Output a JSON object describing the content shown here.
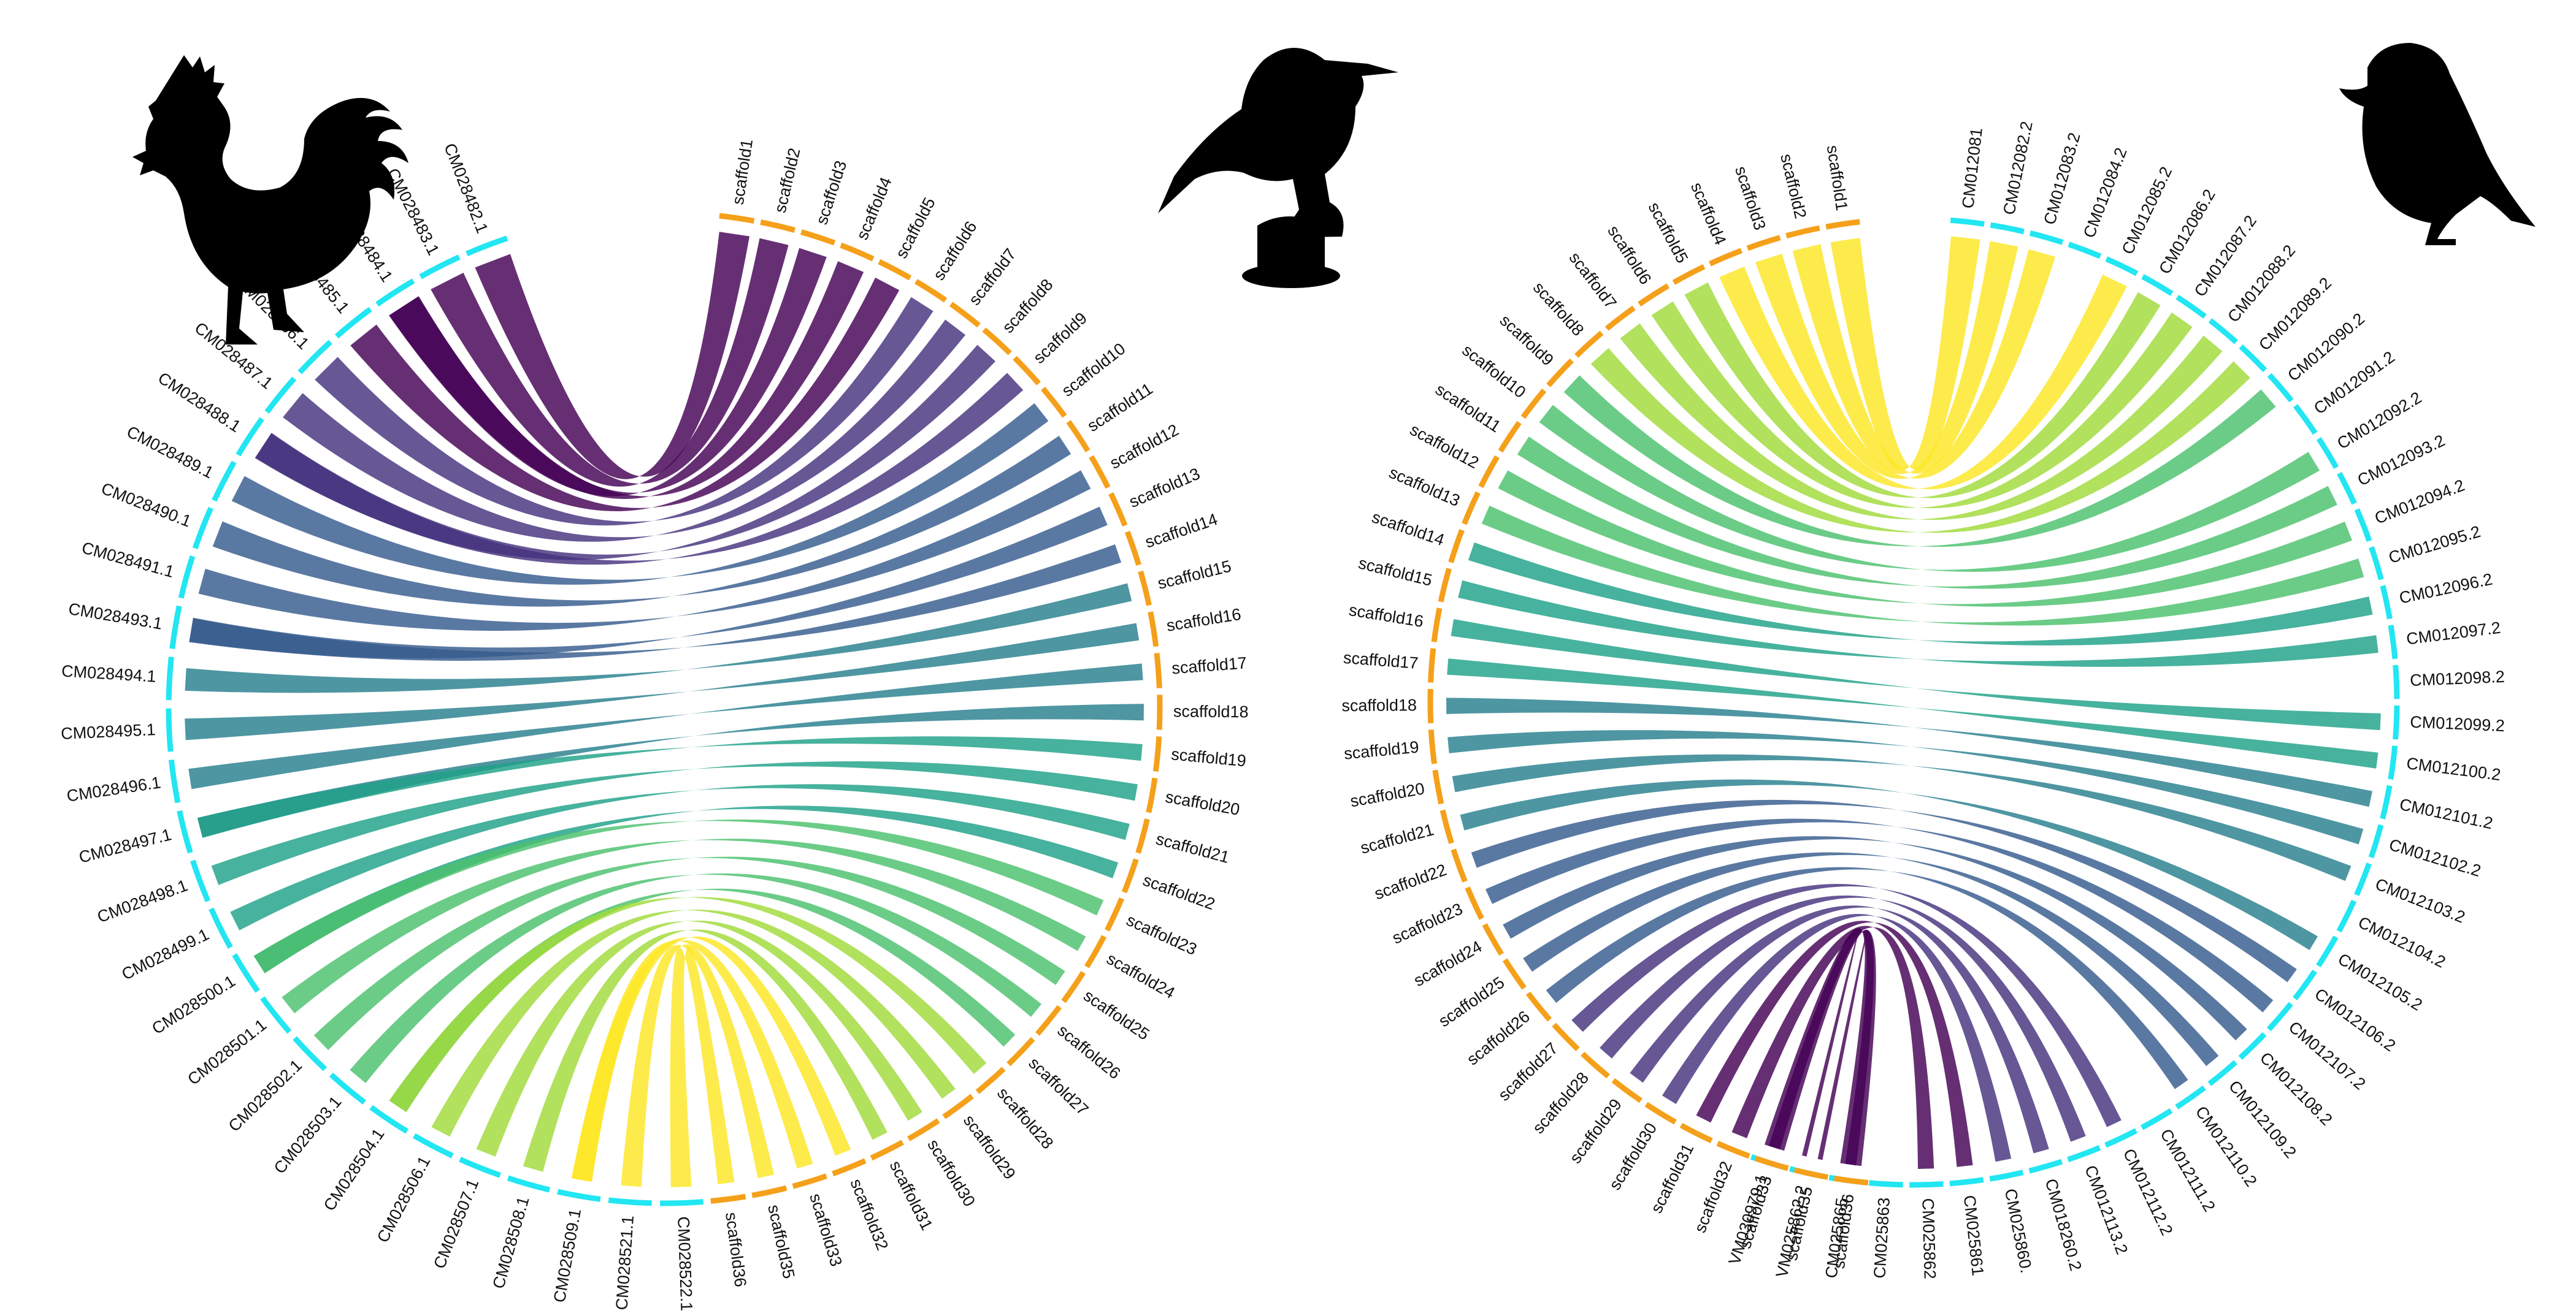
{
  "colors": {
    "reference_arc": "#22e6f2",
    "query_arc": "#f5a01a",
    "palette": [
      "#440154",
      "#46327e",
      "#365c8d",
      "#277f8e",
      "#1fa187",
      "#4ac16d",
      "#a0da39",
      "#fde725"
    ]
  },
  "icons": [
    "rooster-icon",
    "bird-icon",
    "sparrow-icon"
  ],
  "panels": [
    {
      "name": "left-chord",
      "reference": {
        "prefix": "CM0",
        "labels": [
          "CM028482.1",
          "CM028483.1",
          "CM028484.1",
          "CM028485.1",
          "CM028486.1",
          "CM028487.1",
          "CM028488.1",
          "CM028489.1",
          "CM028490.1",
          "CM028491.1",
          "CM028493.1",
          "CM028494.1",
          "CM028495.1",
          "CM028496.1",
          "CM028497.1",
          "CM028498.1",
          "CM028499.1",
          "CM028500.1",
          "CM028501.1",
          "CM028502.1",
          "CM028503.1",
          "CM028504.1",
          "CM028506.1",
          "CM028507.1",
          "CM028508.1",
          "CM028509.1",
          "CM028521.1",
          "CM028522.1"
        ]
      },
      "query": {
        "labels": [
          "scaffold1",
          "scaffold2",
          "scaffold3",
          "scaffold4",
          "scaffold5",
          "scaffold6",
          "scaffold7",
          "scaffold8",
          "scaffold9",
          "scaffold10",
          "scaffold11",
          "scaffold12",
          "scaffold13",
          "scaffold14",
          "scaffold15",
          "scaffold16",
          "scaffold17",
          "scaffold18",
          "scaffold19",
          "scaffold20",
          "scaffold21",
          "scaffold22",
          "scaffold23",
          "scaffold24",
          "scaffold25",
          "scaffold26",
          "scaffold27",
          "scaffold28",
          "scaffold29",
          "scaffold30",
          "scaffold31",
          "scaffold32",
          "scaffold33",
          "scaffold35",
          "scaffold36"
        ]
      }
    },
    {
      "name": "right-chord",
      "reference": {
        "labels": [
          "CM012081",
          "CM012082.2",
          "CM012083.2",
          "CM012084.2",
          "CM012085.2",
          "CM012086.2",
          "CM012087.2",
          "CM012088.2",
          "CM012089.2",
          "CM012090.2",
          "CM012091.2",
          "CM012092.2",
          "CM012093.2",
          "CM012094.2",
          "CM012095.2",
          "CM012096.2",
          "CM012097.2",
          "CM012098.2",
          "CM012099.2",
          "CM012100.2",
          "CM012101.2",
          "CM012102.2",
          "CM012103.2",
          "CM012104.2",
          "CM012105.2",
          "CM012106.2",
          "CM012107.2",
          "CM012108.2",
          "CM012109.2",
          "CM012110.2",
          "CM012111.2",
          "CM012112.2",
          "CM012113.2",
          "CM018260.2",
          "CM025860.",
          "CM025861",
          "CM025862",
          "CM025863",
          "CM025865.",
          "VM025862.2",
          "VM030979.1"
        ]
      },
      "query": {
        "labels": [
          "scaffold1",
          "scaffold2",
          "scaffold3",
          "scaffold4",
          "scaffold5",
          "scaffold6",
          "scaffold7",
          "scaffold8",
          "scaffold9",
          "scaffold10",
          "scaffold11",
          "scaffold12",
          "scaffold13",
          "scaffold14",
          "scaffold15",
          "scaffold16",
          "scaffold17",
          "scaffold18",
          "scaffold19",
          "scaffold20",
          "scaffold21",
          "scaffold22",
          "scaffold23",
          "scaffold24",
          "scaffold25",
          "scaffold26",
          "scaffold27",
          "scaffold28",
          "scaffold29",
          "scaffold30",
          "scaffold31",
          "scaffold32",
          "scaffold33",
          "scaffold35",
          "scaffold36"
        ]
      }
    }
  ]
}
